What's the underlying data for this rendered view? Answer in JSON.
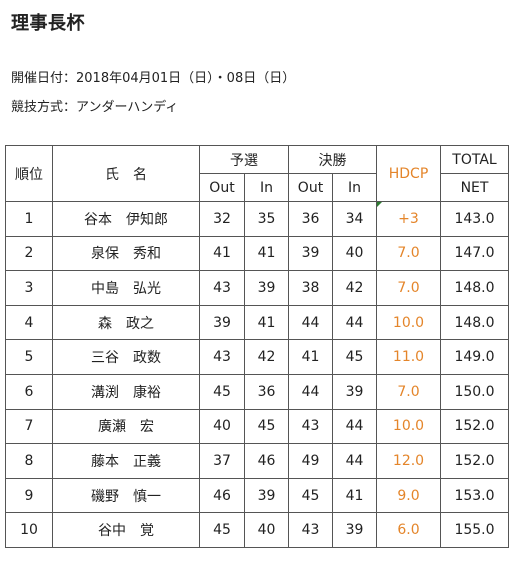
{
  "title": "理事長杯",
  "event_date": "開催日付：2018年04月01日（日）・08日（日）",
  "format": "競技方式：アンダーハンディ",
  "table": {
    "headers": {
      "rank": "順位",
      "name": "氏　名",
      "qualifier": "予選",
      "final": "決勝",
      "out": "Out",
      "in": "In",
      "hdcp": "HDCP",
      "total": "TOTAL",
      "net": "NET"
    },
    "rows": [
      {
        "rank": "1",
        "name": "谷本　伊知郎",
        "q_out": "32",
        "q_in": "35",
        "f_out": "36",
        "f_in": "34",
        "hdcp": "+3",
        "net": "143.0"
      },
      {
        "rank": "2",
        "name": "泉保　秀和",
        "q_out": "41",
        "q_in": "41",
        "f_out": "39",
        "f_in": "40",
        "hdcp": "7.0",
        "net": "147.0"
      },
      {
        "rank": "3",
        "name": "中島　弘光",
        "q_out": "43",
        "q_in": "39",
        "f_out": "38",
        "f_in": "42",
        "hdcp": "7.0",
        "net": "148.0"
      },
      {
        "rank": "4",
        "name": "森　政之",
        "q_out": "39",
        "q_in": "41",
        "f_out": "44",
        "f_in": "44",
        "hdcp": "10.0",
        "net": "148.0"
      },
      {
        "rank": "5",
        "name": "三谷　政数",
        "q_out": "43",
        "q_in": "42",
        "f_out": "41",
        "f_in": "45",
        "hdcp": "11.0",
        "net": "149.0"
      },
      {
        "rank": "6",
        "name": "溝渕　康裕",
        "q_out": "45",
        "q_in": "36",
        "f_out": "44",
        "f_in": "39",
        "hdcp": "7.0",
        "net": "150.0"
      },
      {
        "rank": "7",
        "name": "廣瀬　宏",
        "q_out": "40",
        "q_in": "45",
        "f_out": "43",
        "f_in": "44",
        "hdcp": "10.0",
        "net": "152.0"
      },
      {
        "rank": "8",
        "name": "藤本　正義",
        "q_out": "37",
        "q_in": "46",
        "f_out": "49",
        "f_in": "44",
        "hdcp": "12.0",
        "net": "152.0"
      },
      {
        "rank": "9",
        "name": "磯野　慎一",
        "q_out": "46",
        "q_in": "39",
        "f_out": "45",
        "f_in": "41",
        "hdcp": "9.0",
        "net": "153.0"
      },
      {
        "rank": "10",
        "name": "谷中　覚",
        "q_out": "45",
        "q_in": "40",
        "f_out": "43",
        "f_in": "39",
        "hdcp": "6.0",
        "net": "155.0"
      }
    ]
  },
  "colors": {
    "hdcp_text": "#e4852a",
    "border": "#555555",
    "marker": "#2e7d32"
  }
}
